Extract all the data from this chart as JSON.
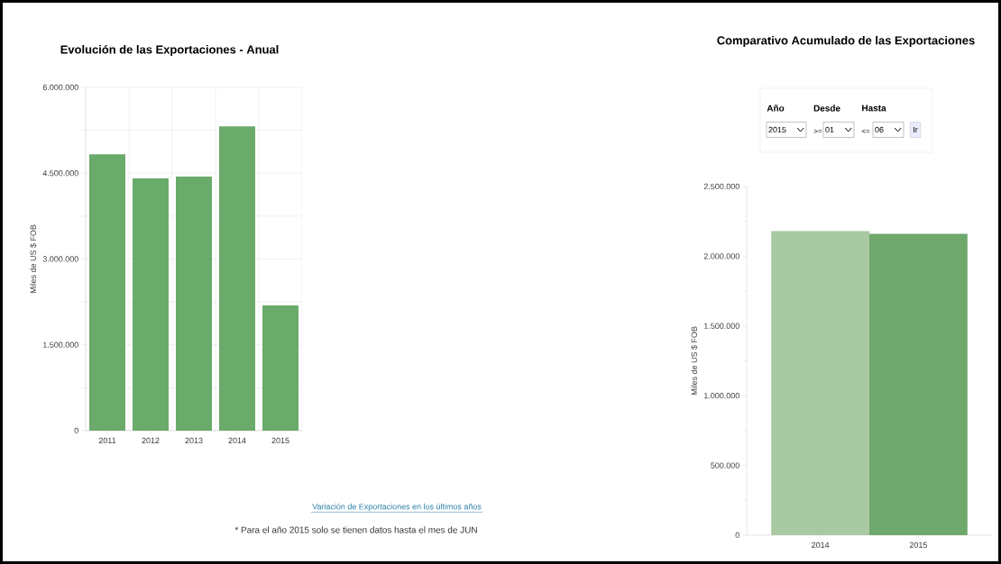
{
  "chart_data": [
    {
      "type": "bar",
      "title": "Evolución de las Exportaciones - Anual",
      "ylabel": "Miles de US $ FOB",
      "categories": [
        "2011",
        "2012",
        "2013",
        "2014",
        "2015"
      ],
      "values": [
        4830000,
        4410000,
        4440000,
        5320000,
        2190000
      ],
      "color": "#6aaa6a",
      "ylim": [
        0,
        6000000
      ],
      "yticks": [
        0,
        {
          "value": 750000,
          "label": null
        },
        {
          "value": 1500000,
          "label": "1.500.000"
        },
        {
          "value": 2250000,
          "label": null
        },
        {
          "value": 3000000,
          "label": "3.000.000"
        },
        {
          "value": 3750000,
          "label": null
        },
        {
          "value": 4500000,
          "label": "4.500.000"
        },
        {
          "value": 5250000,
          "label": null
        },
        {
          "value": 6000000,
          "label": "6.000.000"
        }
      ],
      "grid": true,
      "annotations": [
        "Variación de Exportaciones en los últimos años",
        "* Para el año 2015 solo se tienen datos hasta el mes de JUN"
      ]
    },
    {
      "type": "bar",
      "title": "Comparativo Acumulado de las Exportaciones",
      "ylabel": "Miles de US $ FOB",
      "categories": [
        "2014",
        "2015"
      ],
      "values": [
        2180000,
        2160000
      ],
      "colors": [
        "#a9c9a2",
        "#6fa86c"
      ],
      "ylim": [
        0,
        2500000
      ],
      "yticks": [
        0,
        {
          "value": 250000,
          "label": null
        },
        {
          "value": 500000,
          "label": "500.000"
        },
        {
          "value": 750000,
          "label": null
        },
        {
          "value": 1000000,
          "label": "1.000.000"
        },
        {
          "value": 1250000,
          "label": null
        },
        {
          "value": 1500000,
          "label": "1.500.000"
        },
        {
          "value": 1750000,
          "label": null
        },
        {
          "value": 2000000,
          "label": "2.000.000"
        },
        {
          "value": 2250000,
          "label": null
        },
        {
          "value": 2500000,
          "label": "2.500.000"
        }
      ],
      "grid": false,
      "annotations": [
        "Año",
        "Desde",
        "Hasta",
        "2015",
        ">=",
        "01",
        "<=",
        "06",
        "Ir"
      ]
    }
  ]
}
